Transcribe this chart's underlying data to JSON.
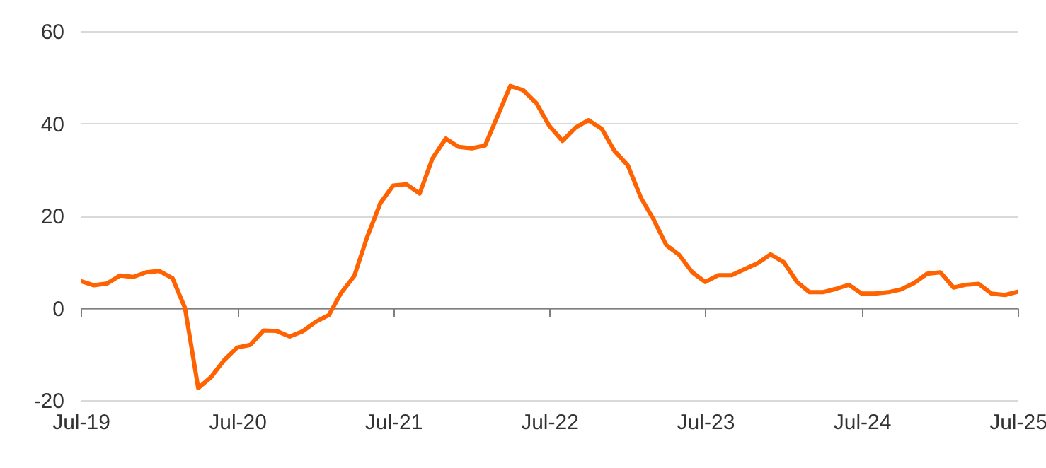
{
  "chart_data": {
    "type": "line",
    "x": [
      "2019-07",
      "2019-08",
      "2019-09",
      "2019-10",
      "2019-11",
      "2019-12",
      "2020-01",
      "2020-02",
      "2020-03",
      "2020-04",
      "2020-05",
      "2020-06",
      "2020-07",
      "2020-08",
      "2020-09",
      "2020-10",
      "2020-11",
      "2020-12",
      "2021-01",
      "2021-02",
      "2021-03",
      "2021-04",
      "2021-05",
      "2021-06",
      "2021-07",
      "2021-08",
      "2021-09",
      "2021-10",
      "2021-11",
      "2021-12",
      "2022-01",
      "2022-02",
      "2022-03",
      "2022-04",
      "2022-05",
      "2022-06",
      "2022-07",
      "2022-08",
      "2022-09",
      "2022-10",
      "2022-11",
      "2022-12",
      "2023-01",
      "2023-02",
      "2023-03",
      "2023-04",
      "2023-05",
      "2023-06",
      "2023-07",
      "2023-08",
      "2023-09",
      "2023-10",
      "2023-11",
      "2023-12",
      "2024-01",
      "2024-02",
      "2024-03",
      "2024-04",
      "2024-05",
      "2024-06",
      "2024-07",
      "2024-08",
      "2024-09",
      "2024-10",
      "2024-11",
      "2024-12",
      "2025-01",
      "2025-02",
      "2025-03",
      "2025-04",
      "2025-05",
      "2025-06",
      "2025-07"
    ],
    "series": [
      {
        "color": "#ff6200",
        "values": [
          5.8,
          4.9,
          5.3,
          7.0,
          6.7,
          7.7,
          8.0,
          6.4,
          0,
          -17.4,
          -15,
          -11.3,
          -8.6,
          -8.0,
          -4.9,
          -5.0,
          -6.2,
          -5.1,
          -3.0,
          -1.5,
          3.2,
          6.9,
          15.3,
          22.7,
          26.5,
          26.8,
          24.8,
          32.4,
          36.7,
          34.9,
          34.6,
          35.2,
          41.3,
          48.1,
          47.2,
          44.4,
          39.5,
          36.2,
          39.1,
          40.7,
          38.8,
          34.0,
          30.9,
          23.8,
          19.4,
          13.6,
          11.5,
          7.7,
          5.6,
          7.1,
          7.1,
          8.4,
          9.7,
          11.6,
          9.9,
          5.6,
          3.4,
          3.4,
          4.1,
          5.0,
          3.1,
          3.1,
          3.4,
          4.0,
          5.4,
          7.4,
          7.7,
          4.4,
          5.0,
          5.2,
          3.1,
          2.8,
          3.5
        ]
      }
    ],
    "xlim": [
      "2019-07",
      "2025-07"
    ],
    "xticks": [
      {
        "value": "2019-07",
        "label": "Jul-19"
      },
      {
        "value": "2020-07",
        "label": "Jul-20"
      },
      {
        "value": "2021-07",
        "label": "Jul-21"
      },
      {
        "value": "2022-07",
        "label": "Jul-22"
      },
      {
        "value": "2023-07",
        "label": "Jul-23"
      },
      {
        "value": "2024-07",
        "label": "Jul-24"
      },
      {
        "value": "2025-07",
        "label": "Jul-25"
      }
    ],
    "ylim": [
      -20,
      60
    ],
    "yticks": [
      -20,
      0,
      20,
      40,
      60
    ],
    "grid": "y"
  }
}
